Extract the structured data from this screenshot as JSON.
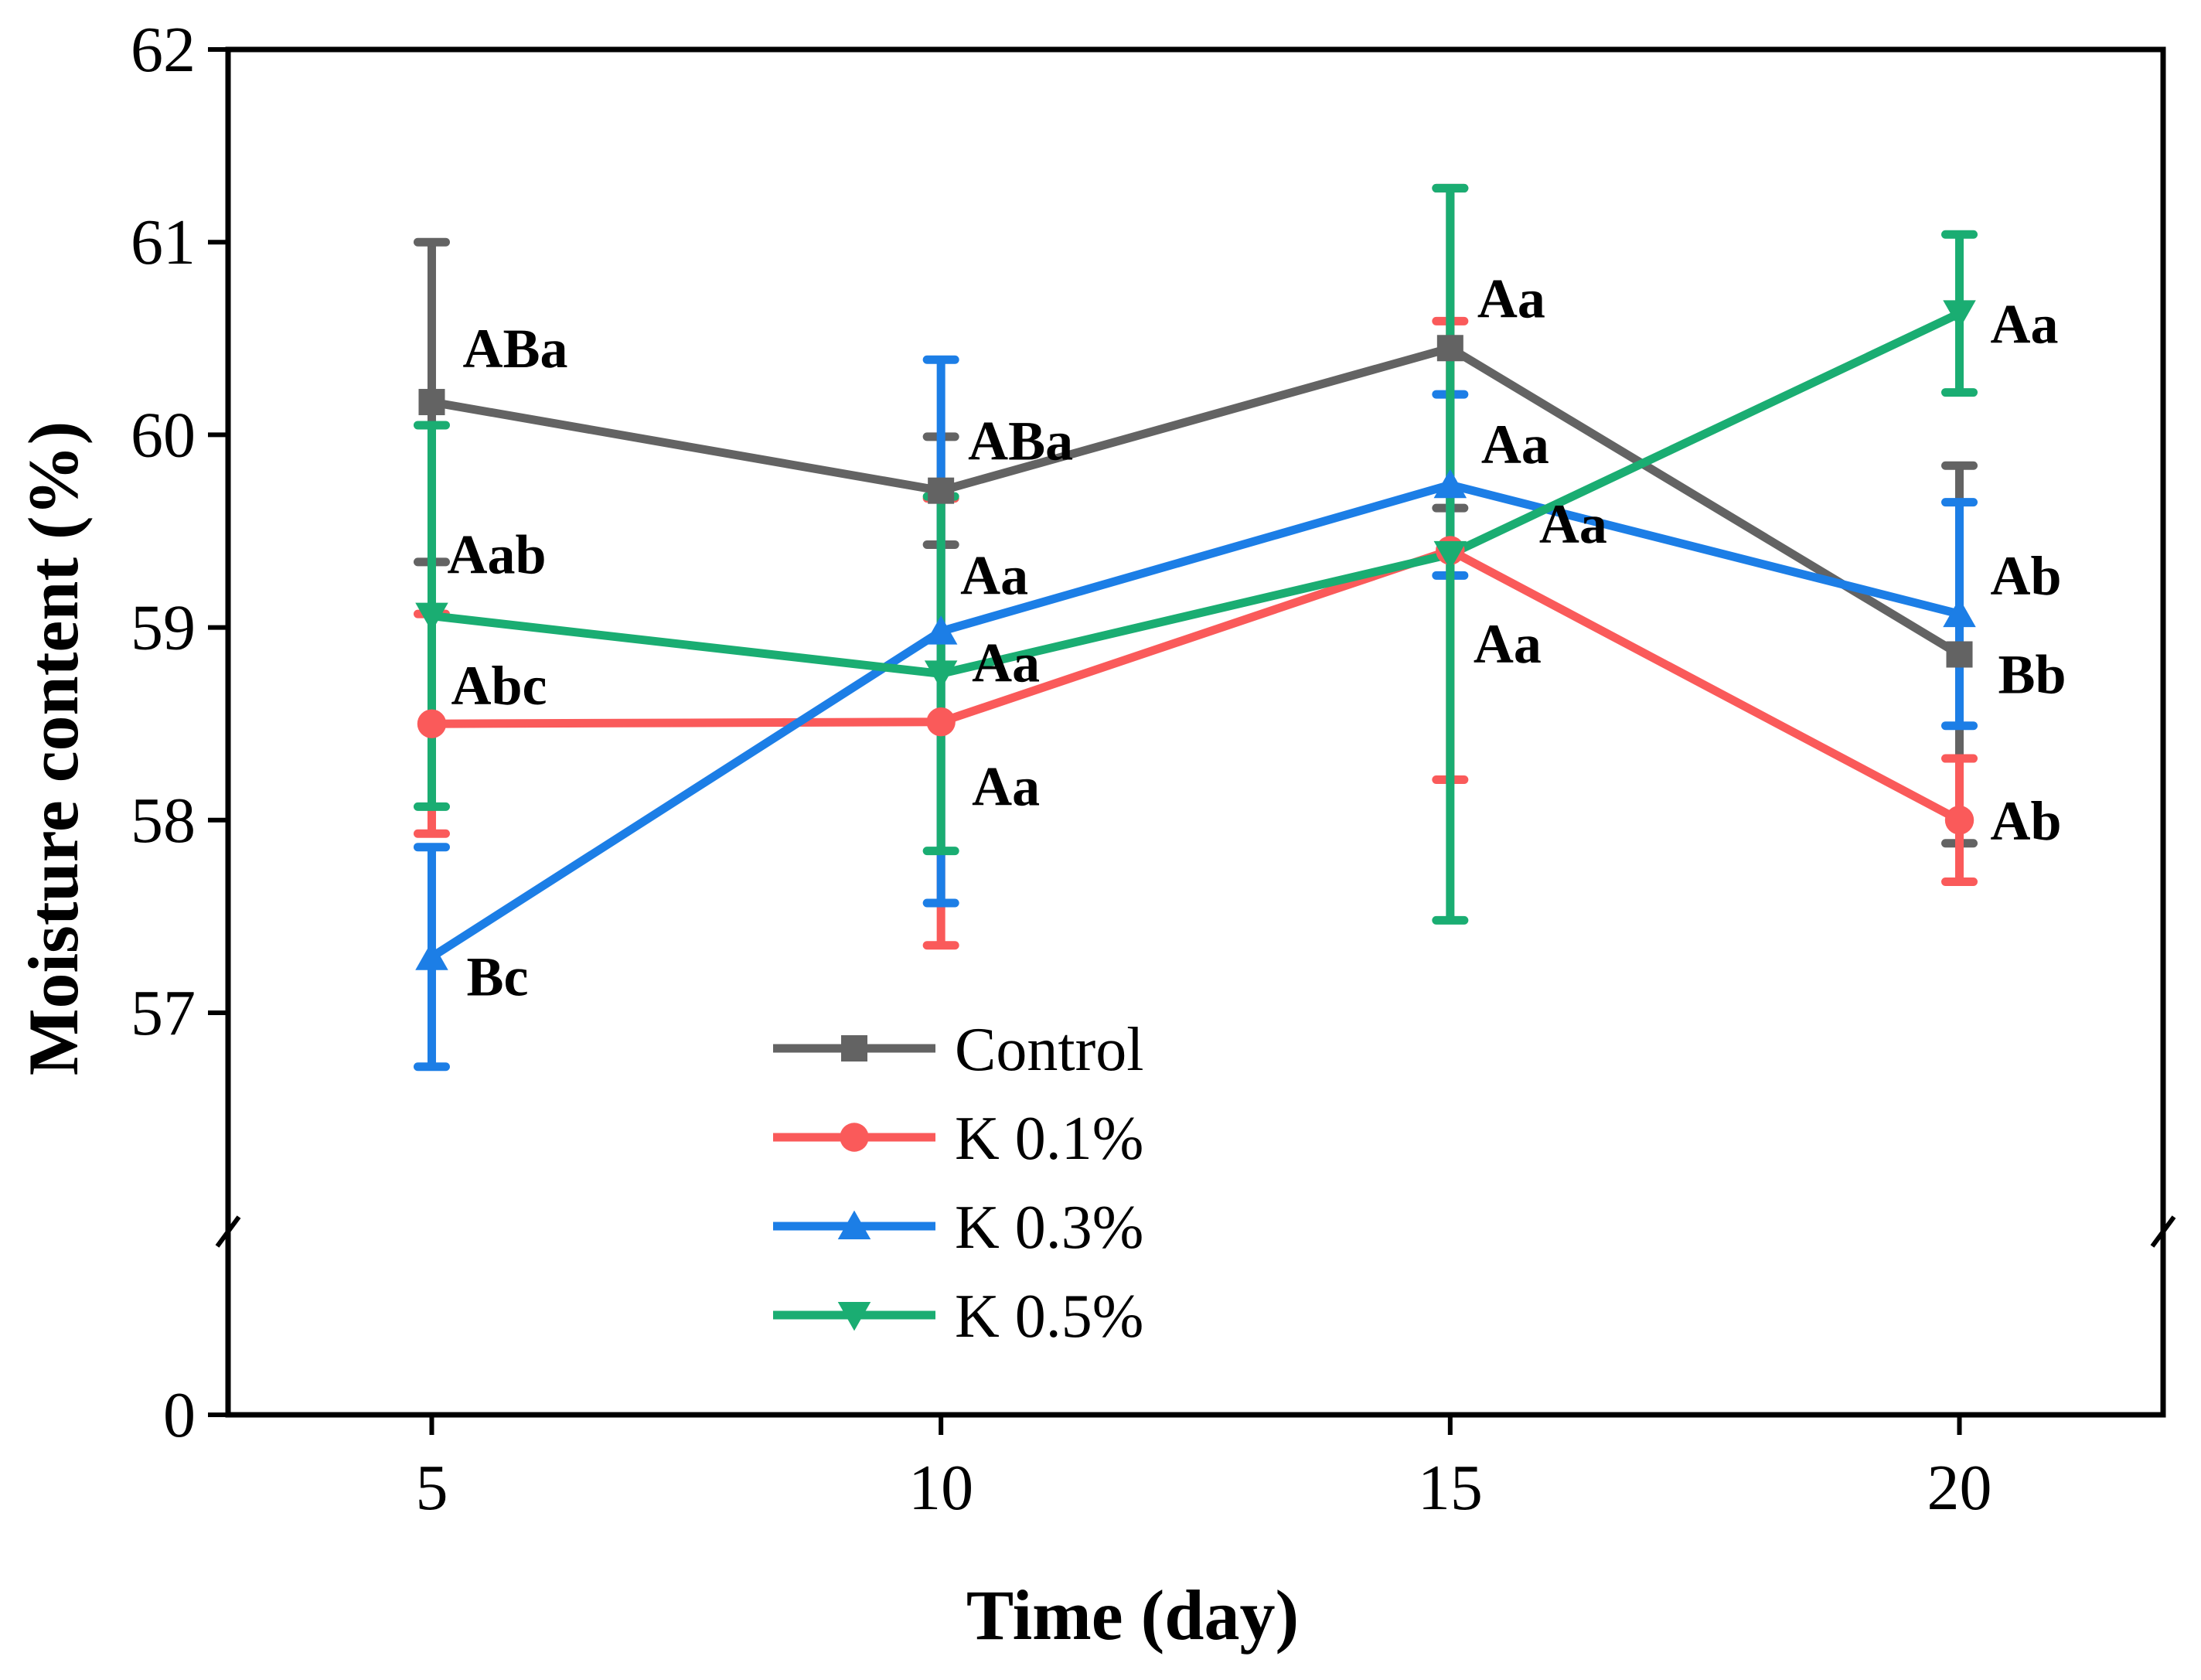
{
  "chart_data": {
    "type": "line",
    "xlabel": "Time (day)",
    "ylabel": "Moisture content (%)",
    "x": [
      5,
      10,
      15,
      20
    ],
    "x_tick_labels": [
      "5",
      "10",
      "15",
      "20"
    ],
    "xlim": [
      3,
      22
    ],
    "y_axis_break": true,
    "y_lower_segment": {
      "ticks": [
        "0"
      ]
    },
    "y_upper_segment": {
      "range": [
        56,
        62
      ],
      "ticks": [
        "57",
        "58",
        "59",
        "60",
        "61",
        "62"
      ]
    },
    "legend_position": "lower-center",
    "series": [
      {
        "name": "Control",
        "color": "#636363",
        "marker": "square",
        "values": [
          60.17,
          59.71,
          60.45,
          58.86
        ],
        "errors": [
          0.83,
          0.28,
          0.83,
          0.98
        ],
        "labels": [
          "ABa",
          "ABa",
          "Aa",
          "Bb"
        ]
      },
      {
        "name": "K 0.1%",
        "color": "#fa5a5a",
        "marker": "circle",
        "values": [
          58.5,
          58.51,
          59.4,
          58.0
        ],
        "errors": [
          0.57,
          1.16,
          1.19,
          0.32
        ],
        "labels": [
          "Abc",
          "Aa",
          "Aa",
          "Ab"
        ]
      },
      {
        "name": "K 0.3%",
        "color": "#1c7ee6",
        "marker": "triangle-up",
        "values": [
          57.29,
          58.98,
          59.74,
          59.07
        ],
        "errors": [
          0.57,
          1.41,
          0.47,
          0.58
        ],
        "labels": [
          "Bc",
          "Aa",
          "Aa",
          "Ab"
        ]
      },
      {
        "name": "K 0.5%",
        "color": "#1aad72",
        "marker": "triangle-down",
        "values": [
          59.06,
          58.76,
          59.38,
          60.63
        ],
        "errors": [
          0.99,
          0.92,
          1.9,
          0.41
        ],
        "labels": [
          "Aab",
          "Aa",
          "Aa",
          "Aa"
        ]
      }
    ]
  }
}
